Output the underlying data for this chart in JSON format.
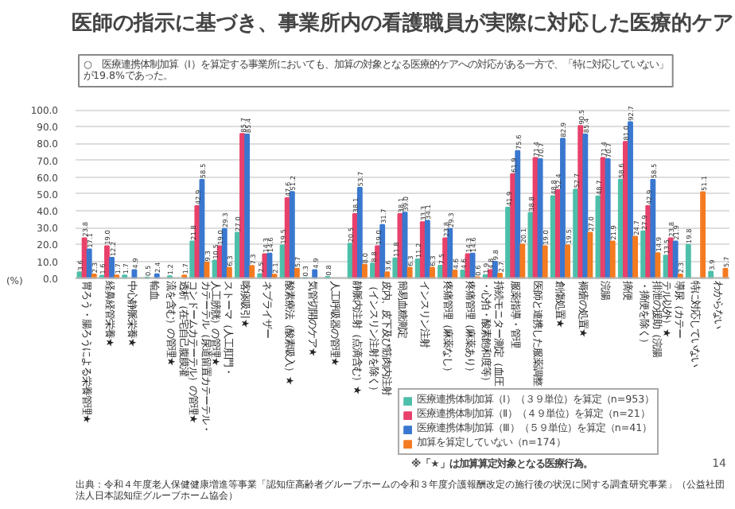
{
  "chart_data": {
    "type": "bar",
    "title": "医師の指示に基づき、事業所内の看護職員が実際に対応した医療的ケア",
    "subtitle": "○　医療連携体制加算（Ⅰ）を算定する事業所においても、加算の対象となる医療的ケアへの対応がある一方で、「特に対応していない」が19.8%であった。",
    "ylabel": "(%)",
    "categories": [
      "胃ろう・腸ろうによる栄養管理★",
      "経鼻経管栄養★",
      "中心静脈栄養★",
      "輸血",
      "透析（在宅自己腹膜灌流を含む）の管理★",
      "カテーテル（尿道留置カテーテル・コンドームカテーテル）の管理★",
      "ストーマ（人工肛門・人工膀胱）の管理★",
      "喀痰吸引★",
      "ネブライザー",
      "酸素療法（酸素吸入）★",
      "気管切開のケア★",
      "人工呼吸器の管理★",
      "静脈内注射（点滴含む）★",
      "皮内、皮下及び筋肉内注射（インスリン注射を除く）",
      "簡易血糖測定",
      "インスリン注射",
      "疼痛管理（麻薬なし）",
      "疼痛管理（麻薬あり）",
      "持続モニター測定（血圧・心拍・酸素飽和度等）",
      "服薬指導・管理",
      "医師と連携した服薬調整",
      "創傷処置★",
      "褥瘡の処置★",
      "浣腸",
      "摘便",
      "排泄の援助（浣腸・摘便を除く）",
      "導尿（カテーテル以外）★",
      "特に対応していない",
      "わからない"
    ],
    "series": [
      {
        "name": "医療連携体制加算（Ⅰ）（３９単位）を算定（n=953）",
        "color": "#4dbfaa",
        "values": [
          3.6,
          1.6,
          1.7,
          0.5,
          1.2,
          21.8,
          10.5,
          27.0,
          2.5,
          19.5,
          0.3,
          0.8,
          20.5,
          8.8,
          11.8,
          11.2,
          7.5,
          4.6,
          1.9,
          41.9,
          38.8,
          48.8,
          52.7,
          48.7,
          58.6,
          27.9,
          13.5,
          19.8,
          3.9
        ],
        "value_labels": [
          "3.6",
          "1.6",
          "1.7",
          "0.5",
          "1.2",
          "21.8",
          "10.5",
          "27.0",
          "2.5",
          "19.5",
          "0.3",
          "0.8",
          "20.5",
          "8.8",
          "11.8",
          "11.2",
          "7.5",
          "4.6",
          "1.9",
          "41.9",
          "38.8",
          "48.8",
          "52.7",
          "48.7",
          "58.6",
          "27.9",
          "13.5",
          "19.8",
          "3.9"
        ]
      },
      {
        "name": "医療連携体制加算（Ⅱ）（４９単位）を算定（n=21）",
        "color": "#e8416b",
        "values": [
          23.8,
          19.0,
          null,
          null,
          null,
          42.9,
          19.0,
          85.7,
          14.3,
          47.6,
          null,
          null,
          38.1,
          19.0,
          38.1,
          33.3,
          23.8,
          14.3,
          4.8,
          61.9,
          71.4,
          52.4,
          90.5,
          71.4,
          81.0,
          42.9,
          23.8,
          null,
          null
        ],
        "value_labels": [
          "23.8",
          "19.0",
          null,
          null,
          null,
          "42.9",
          "19.0",
          "85.7",
          "14.3",
          "47.6",
          null,
          null,
          "38.1",
          "19.0",
          "38.1",
          "33.3",
          "23.8",
          "14.3",
          "4.8",
          "61.9",
          "71.4",
          "52.4",
          "90.5",
          "71.4",
          "81.0",
          "42.9",
          "23.8",
          null,
          null
        ]
      },
      {
        "name": "医療連携体制加算（Ⅲ）（５９単位）を算定（n=41）",
        "color": "#3a78d0",
        "values": [
          17.1,
          12.2,
          4.9,
          2.4,
          null,
          58.5,
          29.3,
          85.4,
          14.6,
          51.2,
          4.9,
          null,
          53.7,
          31.7,
          39.0,
          34.1,
          29.3,
          14.6,
          9.8,
          75.6,
          70.7,
          82.9,
          85.4,
          70.7,
          92.7,
          58.5,
          21.9,
          null,
          null
        ],
        "value_labels": [
          "17.1",
          "12.2",
          "4.9",
          "2.4",
          null,
          "58.5",
          "29.3",
          "85.4",
          "14.6",
          "51.2",
          "4.9",
          null,
          "53.7",
          "31.7",
          "39.0",
          "34.1",
          "29.3",
          "14.6",
          "9.8",
          "75.6",
          "70.7",
          "82.9",
          "85.4",
          "70.7",
          "92.7",
          "58.5",
          "21.9",
          null,
          null
        ]
      },
      {
        "name": "加算を算定していない（n=174）",
        "color": "#f47b20",
        "values": [
          2.3,
          1.7,
          null,
          null,
          1.7,
          9.3,
          6.3,
          7.3,
          2.1,
          5.7,
          null,
          null,
          8.0,
          3.6,
          6.3,
          6.3,
          4.6,
          0.6,
          2.7,
          20.1,
          19.0,
          19.5,
          27.0,
          21.9,
          24.7,
          14.9,
          2.3,
          51.1,
          5.7
        ],
        "value_labels": [
          "2.3",
          "1.7",
          null,
          null,
          "1.7",
          "9.3",
          "6.3",
          "7.3",
          "2.1",
          "5.7",
          null,
          null,
          "8.0",
          "3.6",
          "6.3",
          "6.3",
          "4.6",
          "0.6",
          "2.7",
          "20.1",
          "19.0",
          "19.5",
          "27.0",
          "21.9",
          "24.7",
          "14.9",
          "2.3",
          "51.1",
          "5.7"
        ]
      }
    ],
    "ylim": [
      0,
      100
    ],
    "yticks": [
      {
        "value": 0,
        "label": "0.0"
      },
      {
        "value": 10,
        "label": "10.0"
      },
      {
        "value": 20,
        "label": "20.0"
      },
      {
        "value": 30,
        "label": "30.0"
      },
      {
        "value": 40,
        "label": "40.0"
      },
      {
        "value": 50,
        "label": "50.0"
      },
      {
        "value": 60,
        "label": "60.0"
      },
      {
        "value": 70,
        "label": "70.0"
      },
      {
        "value": 80,
        "label": "80.0"
      },
      {
        "value": 90,
        "label": "90.0"
      },
      {
        "value": 100,
        "label": "100.0"
      }
    ],
    "grid": "y",
    "legend": "bottom right",
    "annotations": [
      "※「★」は加算算定対象となる医療行為。",
      "出典：令和４年度老人保健健康増進等事業「認知症高齢者グループホームの令和３年度介護報酬改定の施行後の状況に関する調査研究事業」（公益社団法人日本認知症グループホーム協会）",
      "14"
    ]
  }
}
